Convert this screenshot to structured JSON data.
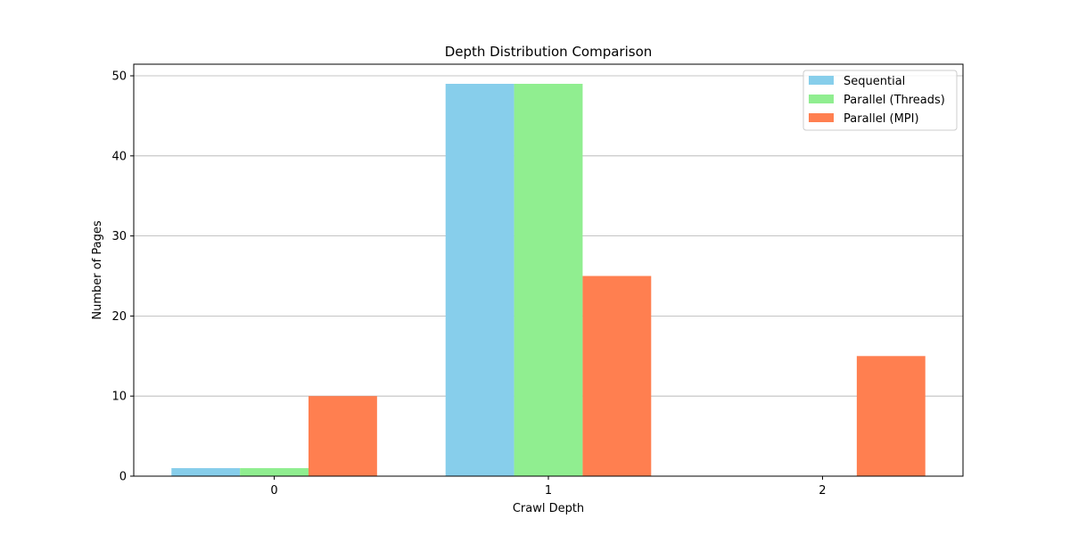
{
  "chart_data": {
    "type": "bar",
    "title": "Depth Distribution Comparison",
    "xlabel": "Crawl Depth",
    "ylabel": "Number of Pages",
    "categories": [
      "0",
      "1",
      "2"
    ],
    "ylim": [
      0,
      51.45
    ],
    "yticks": [
      0,
      10,
      20,
      30,
      40,
      50
    ],
    "grid": "y-major",
    "legend_position": "top-right",
    "series": [
      {
        "name": "Sequential",
        "values": [
          1,
          49,
          0
        ],
        "color": "#87CEEB"
      },
      {
        "name": "Parallel (Threads)",
        "values": [
          1,
          49,
          0
        ],
        "color": "#90EE90"
      },
      {
        "name": "Parallel (MPI)",
        "values": [
          10,
          25,
          15
        ],
        "color": "#FF7F50"
      }
    ]
  }
}
